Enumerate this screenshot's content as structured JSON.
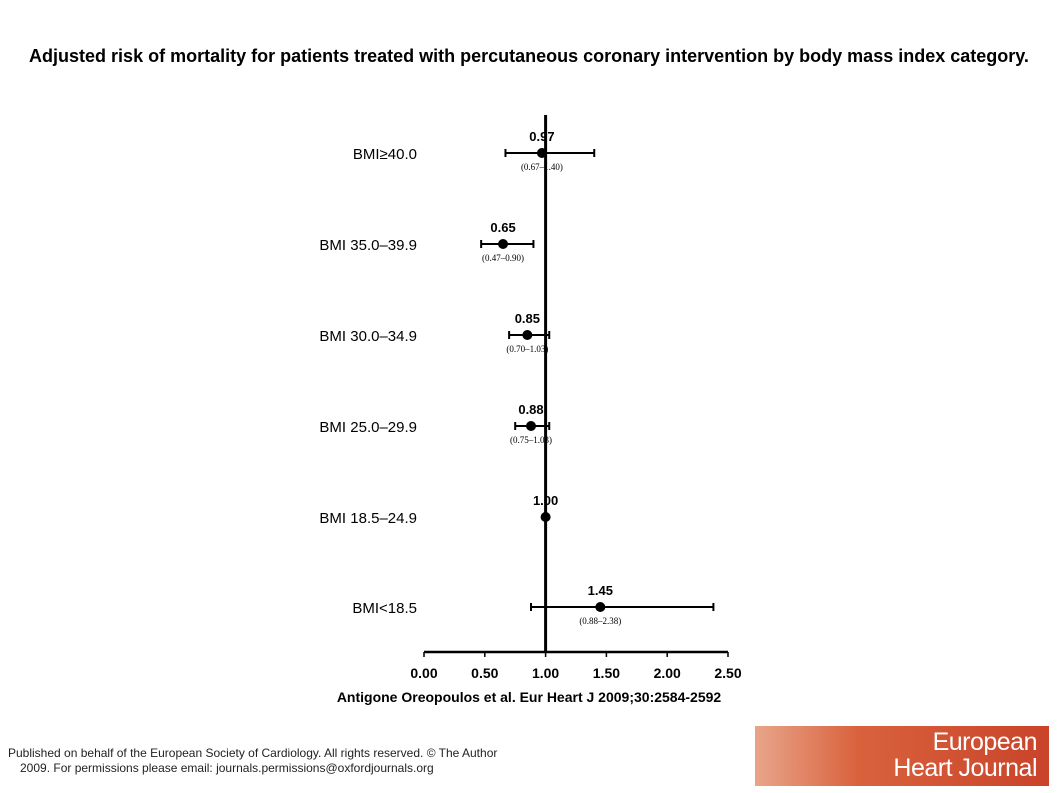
{
  "title": "Adjusted risk of mortality for patients treated with percutaneous coronary intervention by body mass index category.",
  "citation": "Antigone Oreopoulos et al. Eur Heart J 2009;30:2584-2592",
  "footer": {
    "line1": "Published on behalf of the European Society of Cardiology. All rights reserved. © The Author",
    "line2": "2009. For permissions please email: journals.permissions@oxfordjournals.org"
  },
  "logo": {
    "word1": "European",
    "word2": "Heart Journal"
  },
  "colors": {
    "logo_start": "#e8a58a",
    "logo_end": "#c9432a",
    "ink": "#000000"
  },
  "chart_data": {
    "type": "forest",
    "xlim": [
      0,
      2.5
    ],
    "x_ticks": [
      "0.00",
      "0.50",
      "1.00",
      "1.50",
      "2.00",
      "2.50"
    ],
    "reference_line": 1.0,
    "rows": [
      {
        "label": "BMI≥40.0",
        "estimate": 0.97,
        "estimate_label": "0.97",
        "ci_low": 0.67,
        "ci_high": 1.4,
        "ci_label": "(0.67–1.40)"
      },
      {
        "label": "BMI 35.0–39.9",
        "estimate": 0.65,
        "estimate_label": "0.65",
        "ci_low": 0.47,
        "ci_high": 0.9,
        "ci_label": "(0.47–0.90)"
      },
      {
        "label": "BMI 30.0–34.9",
        "estimate": 0.85,
        "estimate_label": "0.85",
        "ci_low": 0.7,
        "ci_high": 1.03,
        "ci_label": "(0.70–1.03)"
      },
      {
        "label": "BMI 25.0–29.9",
        "estimate": 0.88,
        "estimate_label": "0.88",
        "ci_low": 0.75,
        "ci_high": 1.03,
        "ci_label": "(0.75–1.03)"
      },
      {
        "label": "BMI 18.5–24.9",
        "estimate": 1.0,
        "estimate_label": "1.00",
        "ci_low": null,
        "ci_high": null,
        "ci_label": ""
      },
      {
        "label": "BMI<18.5",
        "estimate": 1.45,
        "estimate_label": "1.45",
        "ci_low": 0.88,
        "ci_high": 2.38,
        "ci_label": "(0.88–2.38)"
      }
    ]
  }
}
